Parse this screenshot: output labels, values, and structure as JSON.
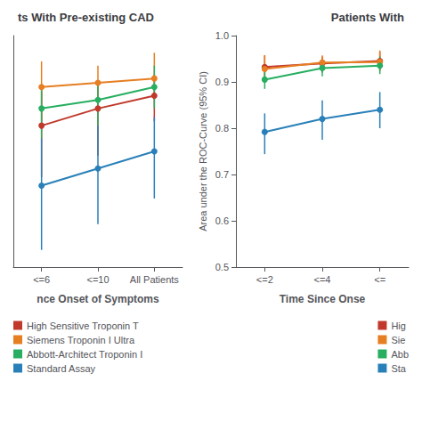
{
  "chart_data": [
    {
      "type": "line",
      "title": "ts With Pre-existing CAD",
      "xlabel": "nce Onset of Symptoms",
      "categories": [
        "<=6",
        "<=10",
        "All Patients"
      ],
      "ylim": [
        0.75,
        1.02
      ],
      "tick_labels": "x",
      "grid": false,
      "legend": "lower left",
      "marker": "circle",
      "series": [
        {
          "name": "High Sensitive Troponin T",
          "color": "#c0392b",
          "values": [
            0.915,
            0.935,
            0.95
          ],
          "yerr_lo": [
            0.06,
            0.055,
            0.03
          ],
          "yerr_hi": [
            0.04,
            0.03,
            0.025
          ]
        },
        {
          "name": "Siemens Troponin I Ultra",
          "color": "#e67e22",
          "values": [
            0.96,
            0.965,
            0.97
          ],
          "yerr_lo": [
            0.04,
            0.03,
            0.025
          ],
          "yerr_hi": [
            0.03,
            0.02,
            0.03
          ]
        },
        {
          "name": "Abbott-Architect Troponin I",
          "color": "#27ae60",
          "values": [
            0.935,
            0.945,
            0.96
          ],
          "yerr_lo": [
            0.035,
            0.03,
            0.025
          ],
          "yerr_hi": [
            0.025,
            0.02,
            0.025
          ]
        },
        {
          "name": "Standard Assay",
          "color": "#2980b9",
          "values": [
            0.845,
            0.865,
            0.885
          ],
          "yerr_lo": [
            0.075,
            0.065,
            0.055
          ],
          "yerr_hi": [
            0.055,
            0.05,
            0.04
          ]
        }
      ]
    },
    {
      "type": "line",
      "title": "Patients With",
      "xlabel": "Time Since Onse",
      "ylabel": "Area under the ROC-Curve (95% CI)",
      "categories": [
        "<=2",
        "<=4",
        "<="
      ],
      "ylim": [
        0.5,
        1.0
      ],
      "yticks": [
        0.5,
        0.6,
        0.7,
        0.8,
        0.9,
        {
          "value": 1.0,
          "label": "1.0"
        }
      ],
      "grid": false,
      "legend": "lower right",
      "marker": "circle",
      "series": [
        {
          "name": "Hig",
          "color": "#c0392b",
          "values": [
            0.932,
            0.94,
            0.945
          ],
          "yerr_lo": [
            0.025,
            0.02,
            0.02
          ],
          "yerr_hi": [
            0.025,
            0.015,
            0.02
          ]
        },
        {
          "name": "Sie",
          "color": "#e67e22",
          "values": [
            0.928,
            0.942,
            0.943
          ],
          "yerr_lo": [
            0.022,
            0.018,
            0.02
          ],
          "yerr_hi": [
            0.03,
            0.015,
            0.025
          ]
        },
        {
          "name": "Abb",
          "color": "#27ae60",
          "values": [
            0.905,
            0.93,
            0.935
          ],
          "yerr_lo": [
            0.02,
            0.018,
            0.018
          ],
          "yerr_hi": [
            0.02,
            0.015,
            0.02
          ]
        },
        {
          "name": "Sta",
          "color": "#2980b9",
          "values": [
            0.792,
            0.82,
            0.84
          ],
          "yerr_lo": [
            0.048,
            0.045,
            0.04
          ],
          "yerr_hi": [
            0.04,
            0.04,
            0.038
          ]
        }
      ]
    }
  ]
}
